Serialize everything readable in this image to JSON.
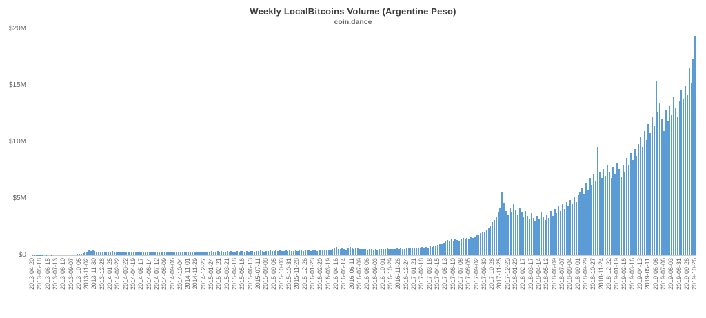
{
  "colors": {
    "bar": "#5b9cd6",
    "axis": "#cccccc",
    "label": "#666666",
    "title": "#3c3c3c"
  },
  "chart_data": {
    "type": "bar",
    "title": "Weekly LocalBitcoins Volume (Argentine Peso)",
    "subtitle": "coin.dance",
    "xlabel": "",
    "ylabel": "",
    "ylim": [
      0,
      20
    ],
    "unit": "millions of pesos (displayed as $ with M suffix)",
    "grid": false,
    "legend": false,
    "y_ticks": [
      {
        "label": "$0",
        "value": 0
      },
      {
        "label": "$5M",
        "value": 5
      },
      {
        "label": "$10M",
        "value": 10
      },
      {
        "label": "$15M",
        "value": 15
      },
      {
        "label": "$20M",
        "value": 20
      }
    ],
    "tick_every": 4,
    "x_tick_labels": [
      "2013-04-20",
      "2013-05-18",
      "2013-06-15",
      "2013-07-13",
      "2013-08-10",
      "2013-09-07",
      "2013-10-05",
      "2013-11-02",
      "2013-11-30",
      "2013-12-28",
      "2014-01-25",
      "2014-02-22",
      "2014-03-22",
      "2014-04-19",
      "2014-05-17",
      "2014-06-14",
      "2014-07-12",
      "2014-08-09",
      "2014-09-06",
      "2014-10-04",
      "2014-11-01",
      "2014-11-29",
      "2014-12-27",
      "2015-01-24",
      "2015-02-21",
      "2015-03-21",
      "2015-04-18",
      "2015-05-16",
      "2015-06-13",
      "2015-07-11",
      "2015-08-08",
      "2015-09-05",
      "2015-10-03",
      "2015-10-31",
      "2015-11-28",
      "2015-12-26",
      "2016-01-23",
      "2016-02-20",
      "2016-03-19",
      "2016-04-16",
      "2016-05-14",
      "2016-06-11",
      "2016-07-09",
      "2016-08-06",
      "2016-09-03",
      "2016-10-01",
      "2016-10-29",
      "2016-11-26",
      "2016-12-24",
      "2017-01-21",
      "2017-02-18",
      "2017-03-18",
      "2017-04-15",
      "2017-05-13",
      "2017-06-10",
      "2017-07-08",
      "2017-08-05",
      "2017-09-02",
      "2017-09-30",
      "2017-10-28",
      "2017-11-25",
      "2017-12-23",
      "2018-01-20",
      "2018-02-17",
      "2018-03-17",
      "2018-04-14",
      "2018-05-12",
      "2018-06-09",
      "2018-07-07",
      "2018-08-04",
      "2018-09-01",
      "2018-09-29",
      "2018-10-27",
      "2018-11-24",
      "2018-12-22",
      "2019-01-19",
      "2019-02-16",
      "2019-03-16",
      "2019-04-13",
      "2019-05-11",
      "2019-06-08",
      "2019-07-06",
      "2019-08-03",
      "2019-08-31",
      "2019-09-28",
      "2019-10-26"
    ],
    "values_millions": [
      0.02,
      0.01,
      0.02,
      0.03,
      0.02,
      0.03,
      0.04,
      0.03,
      0.05,
      0.04,
      0.03,
      0.05,
      0.06,
      0.05,
      0.07,
      0.06,
      0.08,
      0.07,
      0.06,
      0.08,
      0.07,
      0.09,
      0.08,
      0.1,
      0.12,
      0.15,
      0.2,
      0.25,
      0.3,
      0.42,
      0.38,
      0.45,
      0.35,
      0.3,
      0.33,
      0.28,
      0.25,
      0.28,
      0.32,
      0.3,
      0.25,
      0.35,
      0.3,
      0.28,
      0.26,
      0.3,
      0.27,
      0.24,
      0.28,
      0.25,
      0.22,
      0.26,
      0.24,
      0.28,
      0.25,
      0.23,
      0.27,
      0.24,
      0.22,
      0.25,
      0.23,
      0.26,
      0.24,
      0.27,
      0.25,
      0.22,
      0.26,
      0.23,
      0.25,
      0.28,
      0.24,
      0.26,
      0.23,
      0.27,
      0.25,
      0.28,
      0.26,
      0.24,
      0.28,
      0.3,
      0.27,
      0.25,
      0.29,
      0.26,
      0.3,
      0.28,
      0.32,
      0.3,
      0.27,
      0.3,
      0.33,
      0.29,
      0.35,
      0.31,
      0.28,
      0.34,
      0.3,
      0.36,
      0.32,
      0.29,
      0.35,
      0.31,
      0.37,
      0.33,
      0.3,
      0.36,
      0.32,
      0.38,
      0.34,
      0.31,
      0.37,
      0.33,
      0.39,
      0.35,
      0.32,
      0.38,
      0.34,
      0.4,
      0.36,
      0.33,
      0.39,
      0.35,
      0.41,
      0.37,
      0.34,
      0.4,
      0.36,
      0.42,
      0.38,
      0.35,
      0.41,
      0.37,
      0.43,
      0.39,
      0.36,
      0.42,
      0.38,
      0.44,
      0.4,
      0.37,
      0.43,
      0.4,
      0.44,
      0.38,
      0.46,
      0.42,
      0.39,
      0.45,
      0.41,
      0.47,
      0.43,
      0.4,
      0.46,
      0.5,
      0.55,
      0.62,
      0.75,
      0.58,
      0.52,
      0.6,
      0.55,
      0.5,
      0.65,
      0.72,
      0.6,
      0.55,
      0.68,
      0.62,
      0.57,
      0.52,
      0.58,
      0.54,
      0.5,
      0.56,
      0.52,
      0.48,
      0.54,
      0.5,
      0.56,
      0.52,
      0.58,
      0.54,
      0.6,
      0.56,
      0.52,
      0.58,
      0.54,
      0.6,
      0.56,
      0.62,
      0.58,
      0.54,
      0.6,
      0.62,
      0.66,
      0.6,
      0.68,
      0.64,
      0.7,
      0.66,
      0.72,
      0.68,
      0.75,
      0.7,
      0.78,
      0.74,
      0.8,
      0.85,
      0.9,
      0.95,
      1.0,
      1.1,
      1.2,
      1.35,
      1.25,
      1.4,
      1.3,
      1.45,
      1.35,
      1.25,
      1.4,
      1.5,
      1.4,
      1.55,
      1.45,
      1.6,
      1.5,
      1.65,
      1.75,
      1.85,
      1.95,
      2.1,
      2.0,
      2.2,
      2.4,
      2.6,
      2.9,
      3.1,
      3.4,
      3.8,
      4.2,
      5.6,
      4.6,
      3.9,
      3.6,
      4.2,
      3.8,
      4.5,
      4.0,
      3.6,
      4.2,
      3.8,
      3.4,
      3.9,
      3.5,
      3.2,
      3.7,
      3.3,
      3.0,
      3.5,
      3.2,
      3.8,
      3.4,
      3.1,
      3.6,
      3.3,
      3.9,
      3.5,
      4.1,
      3.7,
      4.3,
      3.9,
      4.5,
      4.1,
      4.7,
      4.3,
      4.9,
      4.5,
      5.1,
      4.7,
      5.3,
      5.6,
      6.0,
      5.4,
      6.4,
      5.8,
      6.8,
      6.2,
      7.2,
      6.6,
      9.6,
      7.4,
      6.8,
      7.6,
      7.0,
      8.0,
      7.4,
      6.8,
      7.8,
      7.2,
      8.2,
      7.6,
      6.9,
      8.0,
      7.4,
      8.6,
      8.0,
      9.0,
      8.4,
      9.4,
      8.8,
      9.8,
      10.4,
      9.6,
      11.0,
      10.2,
      11.6,
      10.8,
      12.2,
      11.4,
      15.4,
      12.6,
      13.4,
      12.0,
      11.0,
      12.8,
      11.8,
      13.2,
      12.4,
      14.0,
      13.0,
      12.2,
      13.6,
      14.6,
      13.8,
      15.0,
      14.2,
      16.6,
      15.2,
      17.4,
      19.4
    ]
  }
}
